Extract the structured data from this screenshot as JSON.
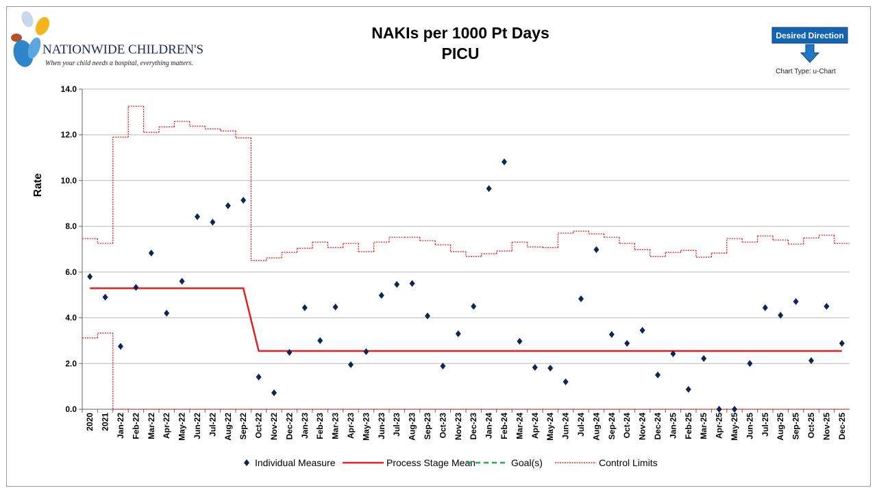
{
  "header": {
    "logo_name": "NATIONWIDE CHILDREN'S",
    "logo_tagline": "When your child needs a hospital, everything matters.",
    "direction_label": "Desired Direction",
    "chart_type_label": "Chart Type: u-Chart"
  },
  "chart_data": {
    "type": "control",
    "title": "NAKIs per 1000 Pt Days",
    "subtitle": "PICU",
    "y_label": "Rate",
    "categories": [
      "2020",
      "2021",
      "Jan-22",
      "Feb-22",
      "Mar-22",
      "Apr-22",
      "May-22",
      "Jun-22",
      "Jul-22",
      "Aug-22",
      "Sep-22",
      "Oct-22",
      "Nov-22",
      "Dec-22",
      "Jan-23",
      "Feb-23",
      "Mar-23",
      "Apr-23",
      "May-23",
      "Jun-23",
      "Jul-23",
      "Aug-23",
      "Sep-23",
      "Oct-23",
      "Nov-23",
      "Dec-23",
      "Jan-24",
      "Feb-24",
      "Mar-24",
      "Apr-24",
      "May-24",
      "Jun-24",
      "Jul-24",
      "Aug-24",
      "Sep-24",
      "Oct-24",
      "Nov-24",
      "Dec-24",
      "Jan-25",
      "Feb-25",
      "Mar-25",
      "Apr-25",
      "May-25",
      "Jun-25",
      "Jul-25",
      "Aug-25",
      "Sep-25",
      "Oct-25",
      "Nov-25",
      "Dec-25"
    ],
    "series": [
      {
        "name": "Individual Measure",
        "color": "#0f2557",
        "values": [
          5.8,
          4.9,
          2.75,
          5.33,
          6.83,
          4.2,
          5.6,
          8.42,
          8.18,
          8.9,
          9.14,
          1.41,
          0.72,
          2.49,
          4.44,
          3.0,
          4.47,
          1.95,
          2.52,
          4.98,
          5.46,
          5.5,
          4.08,
          1.89,
          3.3,
          4.5,
          9.65,
          10.82,
          2.97,
          1.83,
          1.8,
          1.2,
          4.83,
          6.98,
          3.27,
          2.88,
          3.45,
          1.5,
          2.43,
          0.87,
          2.22,
          0,
          0,
          2.0,
          4.44,
          4.11,
          4.71,
          2.13,
          4.5,
          2.88
        ]
      },
      {
        "name": "Process Stage Mean",
        "color": "#e02020",
        "values": [
          5.29,
          5.29,
          5.29,
          5.29,
          5.29,
          5.29,
          5.29,
          5.29,
          5.29,
          5.29,
          5.29,
          2.55,
          2.55,
          2.55,
          2.55,
          2.55,
          2.55,
          2.55,
          2.55,
          2.55,
          2.55,
          2.55,
          2.55,
          2.55,
          2.55,
          2.55,
          2.55,
          2.55,
          2.55,
          2.55,
          2.55,
          2.55,
          2.55,
          2.55,
          2.55,
          2.55,
          2.55,
          2.55,
          2.55,
          2.55,
          2.55,
          2.55,
          2.55,
          2.55,
          2.55,
          2.55,
          2.55,
          2.55,
          2.55,
          2.55
        ]
      },
      {
        "name": "Goal(s)",
        "color": "#22a650"
      },
      {
        "name": "Control Limits",
        "color": "#e02020",
        "upper": [
          7.46,
          7.25,
          11.9,
          13.25,
          12.11,
          12.35,
          12.59,
          12.38,
          12.26,
          12.17,
          11.87,
          6.5,
          6.62,
          6.86,
          7.04,
          7.31,
          7.07,
          7.25,
          6.89,
          7.31,
          7.52,
          7.52,
          7.37,
          7.19,
          6.89,
          6.68,
          6.8,
          6.92,
          7.31,
          7.1,
          7.07,
          7.7,
          7.79,
          7.67,
          7.52,
          7.25,
          6.98,
          6.68,
          6.86,
          6.95,
          6.65,
          6.83,
          7.46,
          7.31,
          7.58,
          7.4,
          7.22,
          7.49,
          7.61,
          7.25
        ],
        "lower": [
          3.12,
          3.33,
          0,
          0,
          0,
          0,
          0,
          0,
          0,
          0,
          0,
          0,
          0,
          0,
          0,
          0,
          0,
          0,
          0,
          0,
          0,
          0,
          0,
          0,
          0,
          0,
          0,
          0,
          0,
          0,
          0,
          0,
          0,
          0,
          0,
          0,
          0,
          0,
          0,
          0,
          0,
          0,
          0,
          0,
          0,
          0,
          0,
          0,
          0,
          0
        ]
      }
    ],
    "ylim": [
      0,
      14
    ],
    "yticks": [
      {
        "value": 0,
        "label": "0.0"
      },
      {
        "value": 2,
        "label": "2.0"
      },
      {
        "value": 4,
        "label": "4.0"
      },
      {
        "value": 6,
        "label": "6.0"
      },
      {
        "value": 8,
        "label": "8.0"
      },
      {
        "value": 10,
        "label": "10.0"
      },
      {
        "value": 12,
        "label": "12.0"
      },
      {
        "value": 14,
        "label": "14.0"
      }
    ],
    "grid": true
  }
}
